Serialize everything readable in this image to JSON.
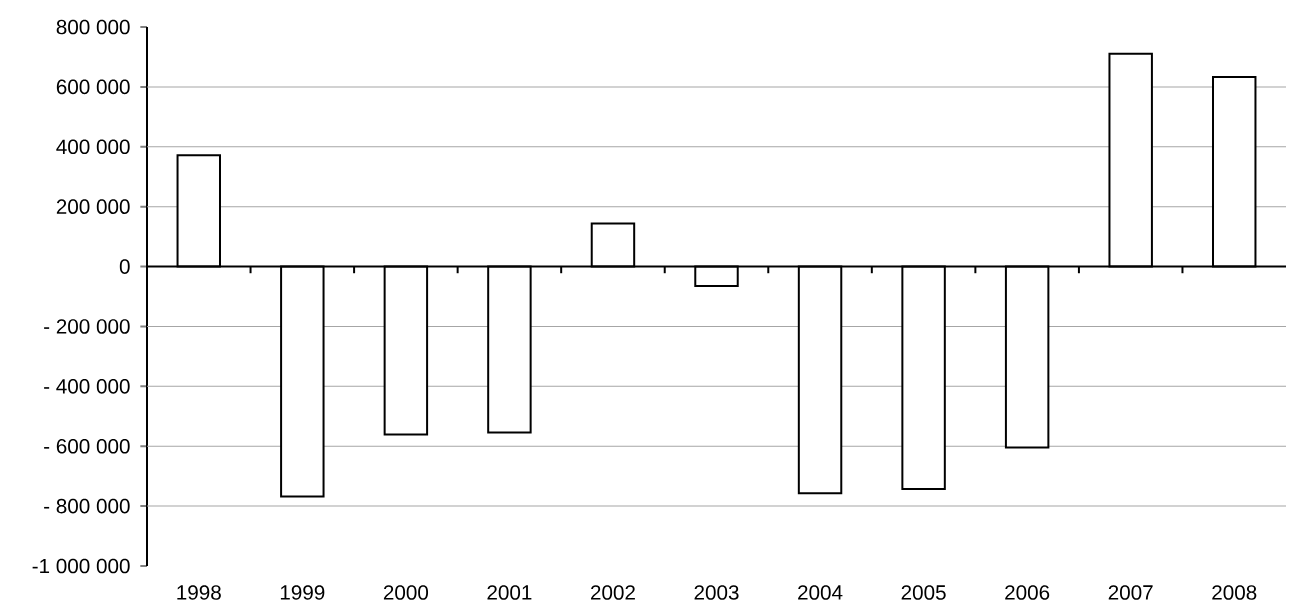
{
  "chart_data": {
    "type": "bar",
    "categories": [
      "1998",
      "1999",
      "2000",
      "2001",
      "2002",
      "2003",
      "2004",
      "2005",
      "2006",
      "2007",
      "2008"
    ],
    "values": [
      372000,
      -768000,
      -561000,
      -554000,
      144000,
      -65000,
      -757000,
      -743000,
      -604000,
      711000,
      633000
    ],
    "color": "#ffffff",
    "ylim": [
      -1000000,
      800000
    ],
    "yticks": [
      {
        "value": 800000,
        "label": "800 000"
      },
      {
        "value": 600000,
        "label": "600 000"
      },
      {
        "value": 400000,
        "label": "400 000"
      },
      {
        "value": 200000,
        "label": "200 000"
      },
      0,
      {
        "value": -200000,
        "label": "- 200 000"
      },
      {
        "value": -400000,
        "label": "- 400 000"
      },
      {
        "value": -600000,
        "label": "- 600 000"
      },
      {
        "value": -800000,
        "label": "- 800 000"
      },
      {
        "value": -1000000,
        "label": "-1 000 000"
      }
    ],
    "grid": "y"
  }
}
